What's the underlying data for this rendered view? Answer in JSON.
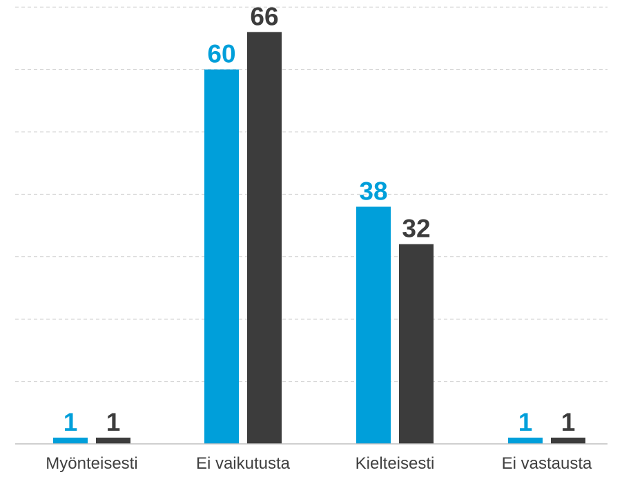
{
  "chart_data": {
    "type": "bar",
    "categories": [
      "Myönteisesti",
      "Ei vaikutusta",
      "Kielteisesti",
      "Ei vastausta"
    ],
    "series": [
      {
        "values": [
          1,
          60,
          38,
          1
        ],
        "color": "#009fda"
      },
      {
        "values": [
          1,
          66,
          32,
          1
        ],
        "color": "#3c3c3c"
      }
    ],
    "title": "",
    "xlabel": "",
    "ylabel": "",
    "ylim": [
      0,
      70
    ],
    "grid": true,
    "gridline_style": "dashed",
    "legend": "none",
    "data_labels": true
  }
}
